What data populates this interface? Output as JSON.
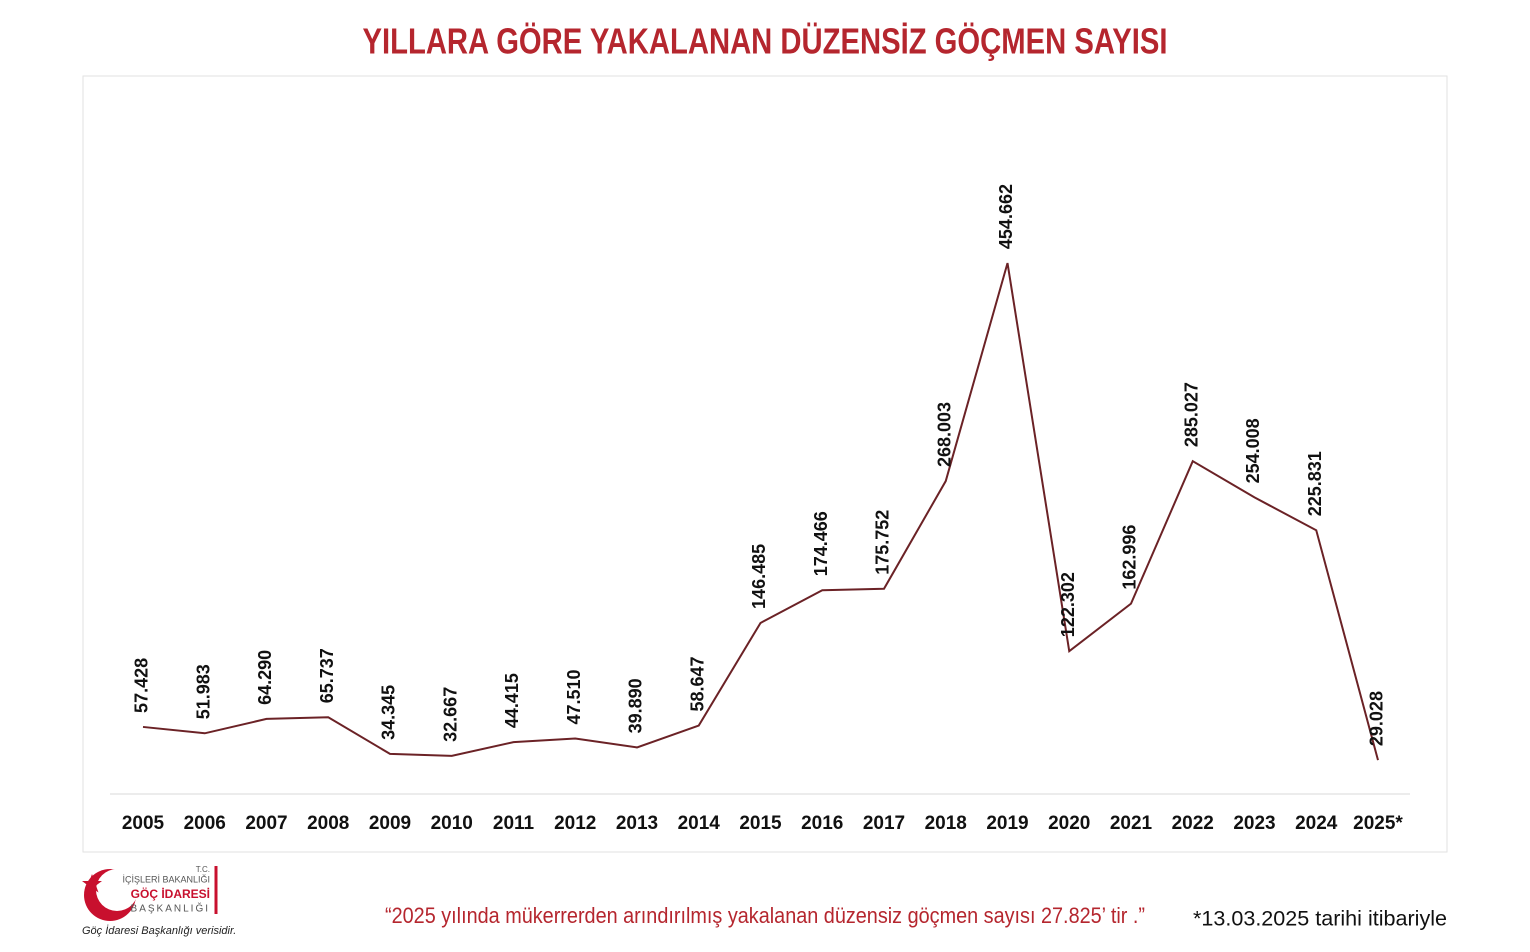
{
  "chart_data": {
    "type": "line",
    "title": "YILLARA GÖRE YAKALANAN DÜZENSİZ GÖÇMEN SAYISI",
    "categories": [
      "2005",
      "2006",
      "2007",
      "2008",
      "2009",
      "2010",
      "2011",
      "2012",
      "2013",
      "2014",
      "2015",
      "2016",
      "2017",
      "2018",
      "2019",
      "2020",
      "2021",
      "2022",
      "2023",
      "2024",
      "2025*"
    ],
    "values": [
      57428,
      51983,
      64290,
      65737,
      34345,
      32667,
      44415,
      47510,
      39890,
      58647,
      146485,
      174466,
      175752,
      268003,
      454662,
      122302,
      162996,
      285027,
      254008,
      225831,
      29028
    ],
    "value_labels": [
      "57.428",
      "51.983",
      "64.290",
      "65.737",
      "34.345",
      "32.667",
      "44.415",
      "47.510",
      "39.890",
      "58.647",
      "146.485",
      "174.466",
      "175.752",
      "268.003",
      "454.662",
      "122.302",
      "162.996",
      "285.027",
      "254.008",
      "225.831",
      "29.028"
    ],
    "color": "#6b2226",
    "annotation": "“2025 yılında mükerrerden arındırılmış yakalanan düzensiz göçmen sayısı  27.825’ tir .”",
    "note": "*13.03.2025 tarihi itibariyle"
  },
  "logo": {
    "line1": "T.C.",
    "line2": "İÇİŞLERİ BAKANLIĞI",
    "line3": "GÖÇ İDARESİ",
    "line4": "BAŞKANLIĞI",
    "caption": "Göç İdaresi Başkanlığı verisidir."
  }
}
